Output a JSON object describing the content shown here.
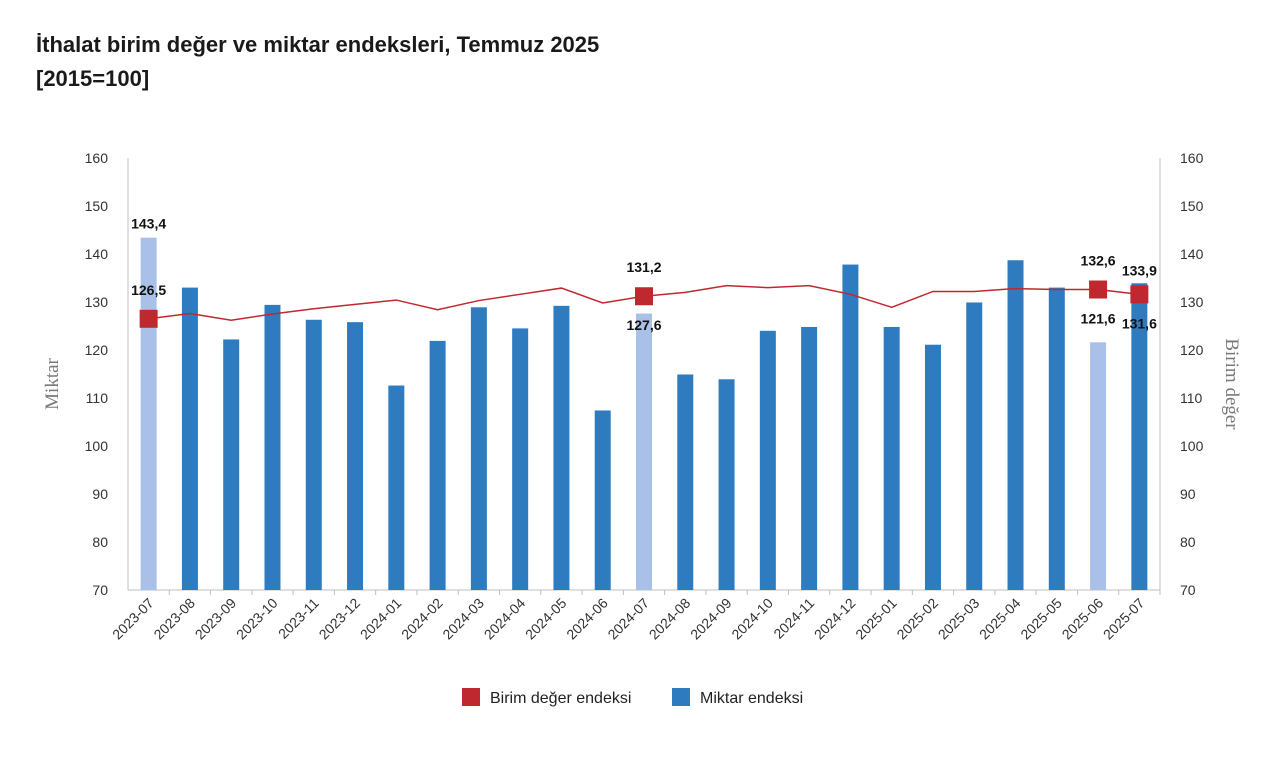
{
  "title": {
    "line1": "İthalat birim değer ve miktar endeksleri, Temmuz 2025",
    "line2": "[2015=100]"
  },
  "colors": {
    "bar": "#2e7cbf",
    "bar_highlight": "#a9c1e8",
    "line": "#c0282f",
    "marker": "#c0282f",
    "axis": "#bfbfbf"
  },
  "chart_data": {
    "type": "bar",
    "categories": [
      "2023-07",
      "2023-08",
      "2023-09",
      "2023-10",
      "2023-11",
      "2023-12",
      "2024-01",
      "2024-02",
      "2024-03",
      "2024-04",
      "2024-05",
      "2024-06",
      "2024-07",
      "2024-08",
      "2024-09",
      "2024-10",
      "2024-11",
      "2024-12",
      "2025-01",
      "2025-02",
      "2025-03",
      "2025-04",
      "2025-05",
      "2025-06",
      "2025-07"
    ],
    "ylabel_left": "Miktar",
    "ylabel_right": "Birim değer",
    "ylim": [
      70,
      160
    ],
    "yticks": [
      70,
      80,
      90,
      100,
      110,
      120,
      130,
      140,
      150,
      160
    ],
    "grid": false,
    "legend_position": "bottom",
    "series": [
      {
        "name": "Birim değer endeksi",
        "type": "line",
        "axis": "right",
        "values": [
          126.5,
          127.6,
          126.2,
          127.5,
          128.6,
          129.5,
          130.4,
          128.4,
          130.3,
          131.6,
          132.9,
          129.8,
          131.2,
          132.0,
          133.4,
          133.0,
          133.4,
          131.6,
          128.9,
          132.2,
          132.2,
          132.8,
          132.6,
          132.6,
          131.6
        ],
        "markers": [
          0,
          12,
          23,
          24
        ]
      },
      {
        "name": "Miktar endeksi",
        "type": "bar",
        "axis": "left",
        "values": [
          143.4,
          133.0,
          122.2,
          129.4,
          126.3,
          125.8,
          112.6,
          121.9,
          128.9,
          124.5,
          129.2,
          107.4,
          127.6,
          114.9,
          113.9,
          124.0,
          124.8,
          137.8,
          124.8,
          121.1,
          129.9,
          138.7,
          133.0,
          121.6,
          133.9
        ],
        "highlighted": [
          0,
          12,
          23
        ]
      }
    ],
    "data_labels": [
      {
        "index": 0,
        "series": "Miktar endeksi",
        "text": "143,4",
        "pos": "above"
      },
      {
        "index": 0,
        "series": "Birim değer endeksi",
        "text": "126,5",
        "pos": "above"
      },
      {
        "index": 12,
        "series": "Birim değer endeksi",
        "text": "131,2",
        "pos": "above"
      },
      {
        "index": 12,
        "series": "Miktar endeksi",
        "text": "127,6",
        "pos": "below-marker"
      },
      {
        "index": 23,
        "series": "Birim değer endeksi",
        "text": "132,6",
        "pos": "above"
      },
      {
        "index": 23,
        "series": "Miktar endeksi",
        "text": "121,6",
        "pos": "below-marker"
      },
      {
        "index": 24,
        "series": "Miktar endeksi",
        "text": "133,9",
        "pos": "above-marker"
      },
      {
        "index": 24,
        "series": "Birim değer endeksi",
        "text": "131,6",
        "pos": "below-marker"
      }
    ]
  }
}
